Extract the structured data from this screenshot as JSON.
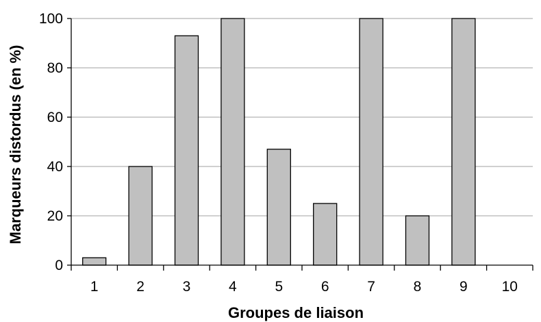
{
  "chart_data": {
    "type": "bar",
    "title": "",
    "xlabel": "Groupes de liaison",
    "ylabel": "Marqueurs distordus (en %)",
    "categories": [
      "1",
      "2",
      "3",
      "4",
      "5",
      "6",
      "7",
      "8",
      "9",
      "10"
    ],
    "values": [
      3,
      40,
      93,
      100,
      47,
      25,
      100,
      20,
      100,
      0
    ],
    "ylim": [
      0,
      100
    ],
    "yticks": [
      "0",
      "20",
      "40",
      "60",
      "80",
      "100"
    ],
    "grid": "horizontal",
    "colors": {
      "bar_fill": "#c0c0c0",
      "bar_stroke": "#000000",
      "grid": "#a0a0a0"
    }
  }
}
